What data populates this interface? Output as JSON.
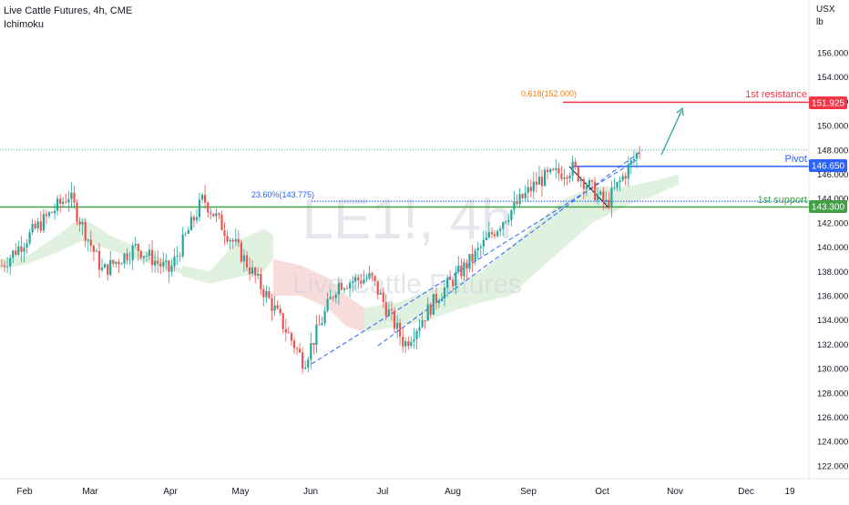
{
  "header": {
    "title": "Live Cattle Futures, 4h, CME",
    "indicator": "Ichimoku"
  },
  "axis": {
    "unit_top": "USX",
    "unit_bottom": "lb"
  },
  "watermark": {
    "symbol": "LE1!, 4h",
    "name": "Live Cattle Futures"
  },
  "annotations": {
    "fib_618": "0.618(152.000)",
    "fib_236": "23.60%(143.775)",
    "resistance_label": "1st resistance",
    "pivot_label": "Pivot",
    "support_label": "1st support"
  },
  "colors": {
    "up": "#26a69a",
    "down": "#ef5350",
    "resistance": "#f23645",
    "pivot": "#2962ff",
    "support": "#43a047",
    "fib618": "#f57c00",
    "fib236": "#2962ff",
    "cloud_bull": "#a5d6a7",
    "cloud_bear": "#ef9a9a"
  },
  "chart_data": {
    "type": "candlestick",
    "title": "Live Cattle Futures, 4h, CME",
    "indicator": "Ichimoku",
    "ylim": [
      121,
      159
    ],
    "y_ticks": [
      "156.000",
      "154.000",
      "152.000",
      "150.000",
      "148.000",
      "146.000",
      "144.000",
      "142.000",
      "140.000",
      "138.000",
      "136.000",
      "134.000",
      "132.000",
      "130.000",
      "128.000",
      "126.000",
      "124.000",
      "122.000"
    ],
    "x_ticks": [
      "Feb",
      "Mar",
      "Apr",
      "May",
      "Jun",
      "Jul",
      "Aug",
      "Sep",
      "Oct",
      "Nov",
      "Dec",
      "19"
    ],
    "levels": [
      {
        "name": "1st resistance",
        "value": "151.925"
      },
      {
        "name": "Pivot",
        "value": "146.650"
      },
      {
        "name": "1st support",
        "value": "143.300"
      }
    ],
    "fibonacci": [
      {
        "label": "0.618(152.000)",
        "value": 152.0
      },
      {
        "label": "23.60%(143.775)",
        "value": 143.775
      }
    ],
    "last_price": 148.0,
    "price_path": [
      [
        "Feb",
        138.5
      ],
      [
        "Feb",
        141.5
      ],
      [
        "Mar",
        144.3
      ],
      [
        "Mar",
        138.0
      ],
      [
        "Mar",
        140.0
      ],
      [
        "Apr",
        138.0
      ],
      [
        "Apr",
        144.0
      ],
      [
        "Apr",
        140.0
      ],
      [
        "May",
        135.5
      ],
      [
        "Jun",
        130.5
      ],
      [
        "Jun",
        137.0
      ],
      [
        "Jun",
        137.5
      ],
      [
        "Jul",
        132.0
      ],
      [
        "Jul",
        136.0
      ],
      [
        "Aug",
        139.0
      ],
      [
        "Aug",
        142.5
      ],
      [
        "Sep",
        145.5
      ],
      [
        "Sep",
        146.5
      ],
      [
        "Oct",
        143.5
      ],
      [
        "Oct",
        148.0
      ]
    ],
    "trend_projection": {
      "from": 147.8,
      "to": 150.8
    },
    "grid": false
  }
}
